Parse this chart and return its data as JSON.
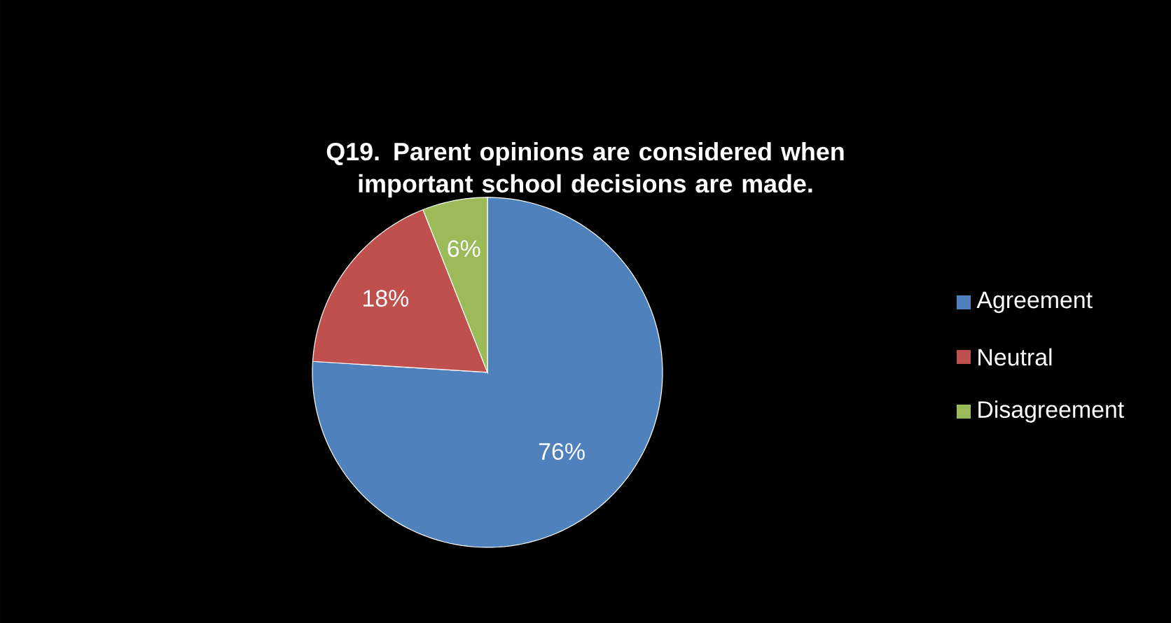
{
  "chart_data": {
    "type": "pie",
    "title": "Q19. Parent opinions are considered when important school decisions are made.",
    "categories": [
      "Agreement",
      "Neutral",
      "Disagreement"
    ],
    "values": [
      76,
      18,
      6
    ],
    "value_labels": [
      "76%",
      "18%",
      "6%"
    ],
    "colors": [
      "#4f81bd",
      "#c0504d",
      "#9bbb59"
    ],
    "legend": "right"
  }
}
